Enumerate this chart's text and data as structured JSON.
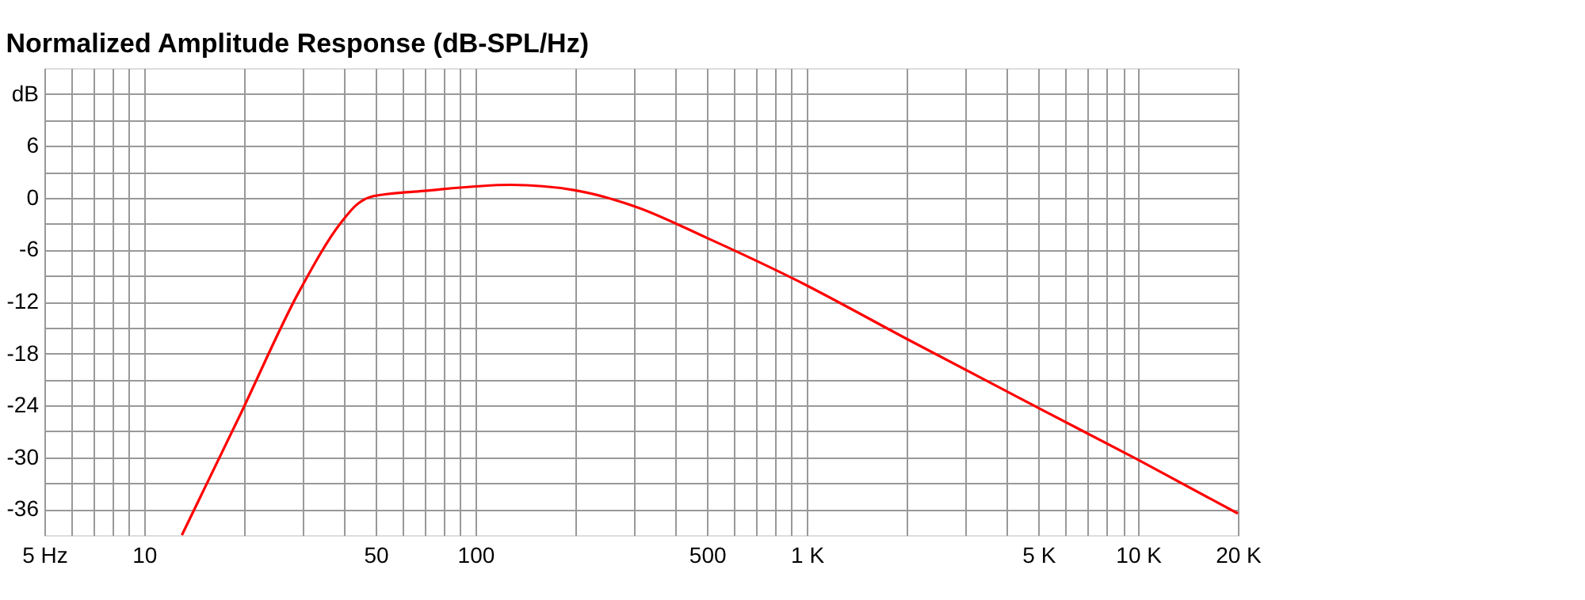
{
  "chart_data": {
    "type": "line",
    "title": "Normalized Amplitude Response (dB-SPL/Hz)",
    "x": [
      13,
      19.6,
      29.4,
      39.4,
      43.8,
      49.2,
      70,
      128,
      198,
      308,
      497,
      927,
      2000,
      5000,
      10000,
      20000
    ],
    "series": [
      {
        "color": "#ff0000",
        "values": [
          -39,
          -24.9,
          -10.8,
          -2.8,
          -0.8,
          0.2,
          0.8,
          1.5,
          0.9,
          -1.1,
          -4.6,
          -9.5,
          -16.3,
          -24.3,
          -30.3,
          -36.5
        ]
      }
    ],
    "xlim": [
      5,
      20000
    ],
    "ylim": [
      -39,
      15
    ],
    "xticks": [
      {
        "value": 5,
        "label": "5 Hz"
      },
      {
        "value": 6,
        "label": null
      },
      {
        "value": 7,
        "label": null
      },
      {
        "value": 8,
        "label": null
      },
      {
        "value": 9,
        "label": null
      },
      10,
      {
        "value": 20,
        "label": null
      },
      {
        "value": 30,
        "label": null
      },
      {
        "value": 40,
        "label": null
      },
      50,
      {
        "value": 60,
        "label": null
      },
      {
        "value": 70,
        "label": null
      },
      {
        "value": 80,
        "label": null
      },
      {
        "value": 90,
        "label": null
      },
      100,
      {
        "value": 200,
        "label": null
      },
      {
        "value": 300,
        "label": null
      },
      {
        "value": 400,
        "label": null
      },
      500,
      {
        "value": 600,
        "label": null
      },
      {
        "value": 700,
        "label": null
      },
      {
        "value": 800,
        "label": null
      },
      {
        "value": 900,
        "label": null
      },
      {
        "value": 1000,
        "label": "1 K"
      },
      {
        "value": 2000,
        "label": null
      },
      {
        "value": 3000,
        "label": null
      },
      {
        "value": 4000,
        "label": null
      },
      {
        "value": 5000,
        "label": "5 K"
      },
      {
        "value": 6000,
        "label": null
      },
      {
        "value": 7000,
        "label": null
      },
      {
        "value": 8000,
        "label": null
      },
      {
        "value": 9000,
        "label": null
      },
      {
        "value": 10000,
        "label": "10 K"
      },
      {
        "value": 20000,
        "label": "20 K"
      }
    ],
    "yticks": [
      {
        "value": 12,
        "label": "dB"
      },
      {
        "value": 9,
        "label": null
      },
      6,
      {
        "value": 3,
        "label": null
      },
      0,
      {
        "value": -3,
        "label": null
      },
      -6,
      {
        "value": -9,
        "label": null
      },
      -12,
      {
        "value": -15,
        "label": null
      },
      -18,
      {
        "value": -21,
        "label": null
      },
      -24,
      {
        "value": -27,
        "label": null
      },
      -30,
      {
        "value": -33,
        "label": null
      },
      -36
    ],
    "log": "x",
    "grid": true,
    "line_style": "solid",
    "legend": false
  }
}
